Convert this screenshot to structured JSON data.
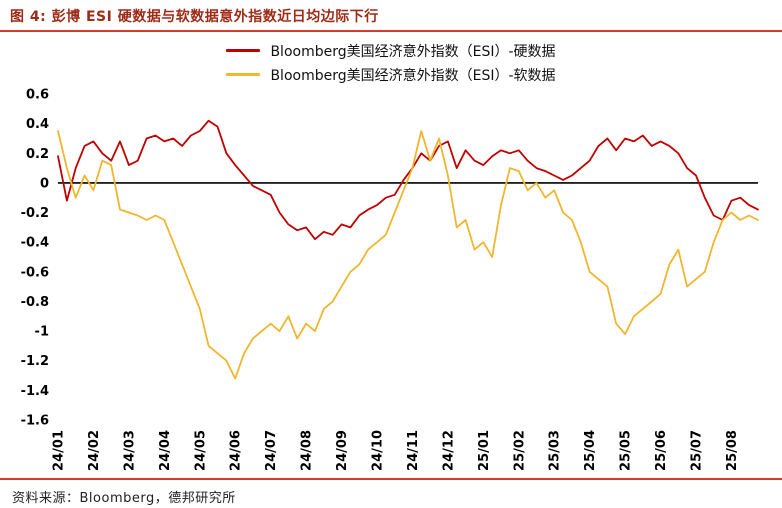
{
  "header": {
    "title": "图 4: 彭博 ESI 硬数据与软数据意外指数近日均边际下行"
  },
  "footer": {
    "source": "资料来源：Bloomberg，德邦研究所"
  },
  "colors": {
    "title": "#9e2b17",
    "rule": "#d23c28",
    "axis": "#000000",
    "hard_series": "#c00000",
    "soft_series": "#f0b62f"
  },
  "chart_data": {
    "type": "line",
    "title": "",
    "xlabel": "",
    "ylabel": "",
    "grid": false,
    "legend_position": "top-center",
    "ylim": [
      -1.6,
      0.6
    ],
    "y_tick_labels": [
      "0.6",
      "0.4",
      "0.2",
      "0",
      "-0.2",
      "-0.4",
      "-0.6",
      "-0.8",
      "-1",
      "-1.2",
      "-1.4",
      "-1.6"
    ],
    "x_tick_labels": [
      "24/01",
      "24/02",
      "24/03",
      "24/04",
      "24/05",
      "24/06",
      "24/07",
      "24/08",
      "24/09",
      "24/10",
      "24/11",
      "24/12",
      "25/01",
      "25/02",
      "25/03",
      "25/04",
      "25/05",
      "25/06",
      "25/07",
      "25/08"
    ],
    "x_tick_step": 4,
    "series": [
      {
        "name": "Bloomberg美国经济意外指数（ESI）-硬数据",
        "color": "#c00000",
        "values": [
          0.18,
          -0.12,
          0.1,
          0.25,
          0.28,
          0.2,
          0.15,
          0.28,
          0.12,
          0.15,
          0.3,
          0.32,
          0.28,
          0.3,
          0.25,
          0.32,
          0.35,
          0.42,
          0.38,
          0.2,
          0.12,
          0.05,
          -0.02,
          -0.05,
          -0.08,
          -0.2,
          -0.28,
          -0.32,
          -0.3,
          -0.38,
          -0.33,
          -0.35,
          -0.28,
          -0.3,
          -0.22,
          -0.18,
          -0.15,
          -0.1,
          -0.08,
          0.02,
          0.1,
          0.2,
          0.15,
          0.25,
          0.28,
          0.1,
          0.22,
          0.15,
          0.12,
          0.18,
          0.22,
          0.2,
          0.22,
          0.15,
          0.1,
          0.08,
          0.05,
          0.02,
          0.05,
          0.1,
          0.15,
          0.25,
          0.3,
          0.22,
          0.3,
          0.28,
          0.32,
          0.25,
          0.28,
          0.25,
          0.2,
          0.1,
          0.05,
          -0.1,
          -0.22,
          -0.25,
          -0.12,
          -0.1,
          -0.15,
          -0.18
        ]
      },
      {
        "name": "Bloomberg美国经济意外指数（ESI）-软数据",
        "color": "#f0b62f",
        "values": [
          0.35,
          0.1,
          -0.1,
          0.05,
          -0.05,
          0.15,
          0.12,
          -0.18,
          -0.2,
          -0.22,
          -0.25,
          -0.22,
          -0.25,
          -0.4,
          -0.55,
          -0.7,
          -0.85,
          -1.1,
          -1.15,
          -1.2,
          -1.32,
          -1.15,
          -1.05,
          -1.0,
          -0.95,
          -1.0,
          -0.9,
          -1.05,
          -0.95,
          -1.0,
          -0.85,
          -0.8,
          -0.7,
          -0.6,
          -0.55,
          -0.45,
          -0.4,
          -0.35,
          -0.2,
          -0.05,
          0.1,
          0.35,
          0.15,
          0.3,
          0.05,
          -0.3,
          -0.25,
          -0.45,
          -0.4,
          -0.5,
          -0.15,
          0.1,
          0.08,
          -0.05,
          0.0,
          -0.1,
          -0.05,
          -0.2,
          -0.25,
          -0.4,
          -0.6,
          -0.65,
          -0.7,
          -0.95,
          -1.02,
          -0.9,
          -0.85,
          -0.8,
          -0.75,
          -0.55,
          -0.45,
          -0.7,
          -0.65,
          -0.6,
          -0.4,
          -0.25,
          -0.2,
          -0.25,
          -0.22,
          -0.25
        ]
      }
    ]
  }
}
